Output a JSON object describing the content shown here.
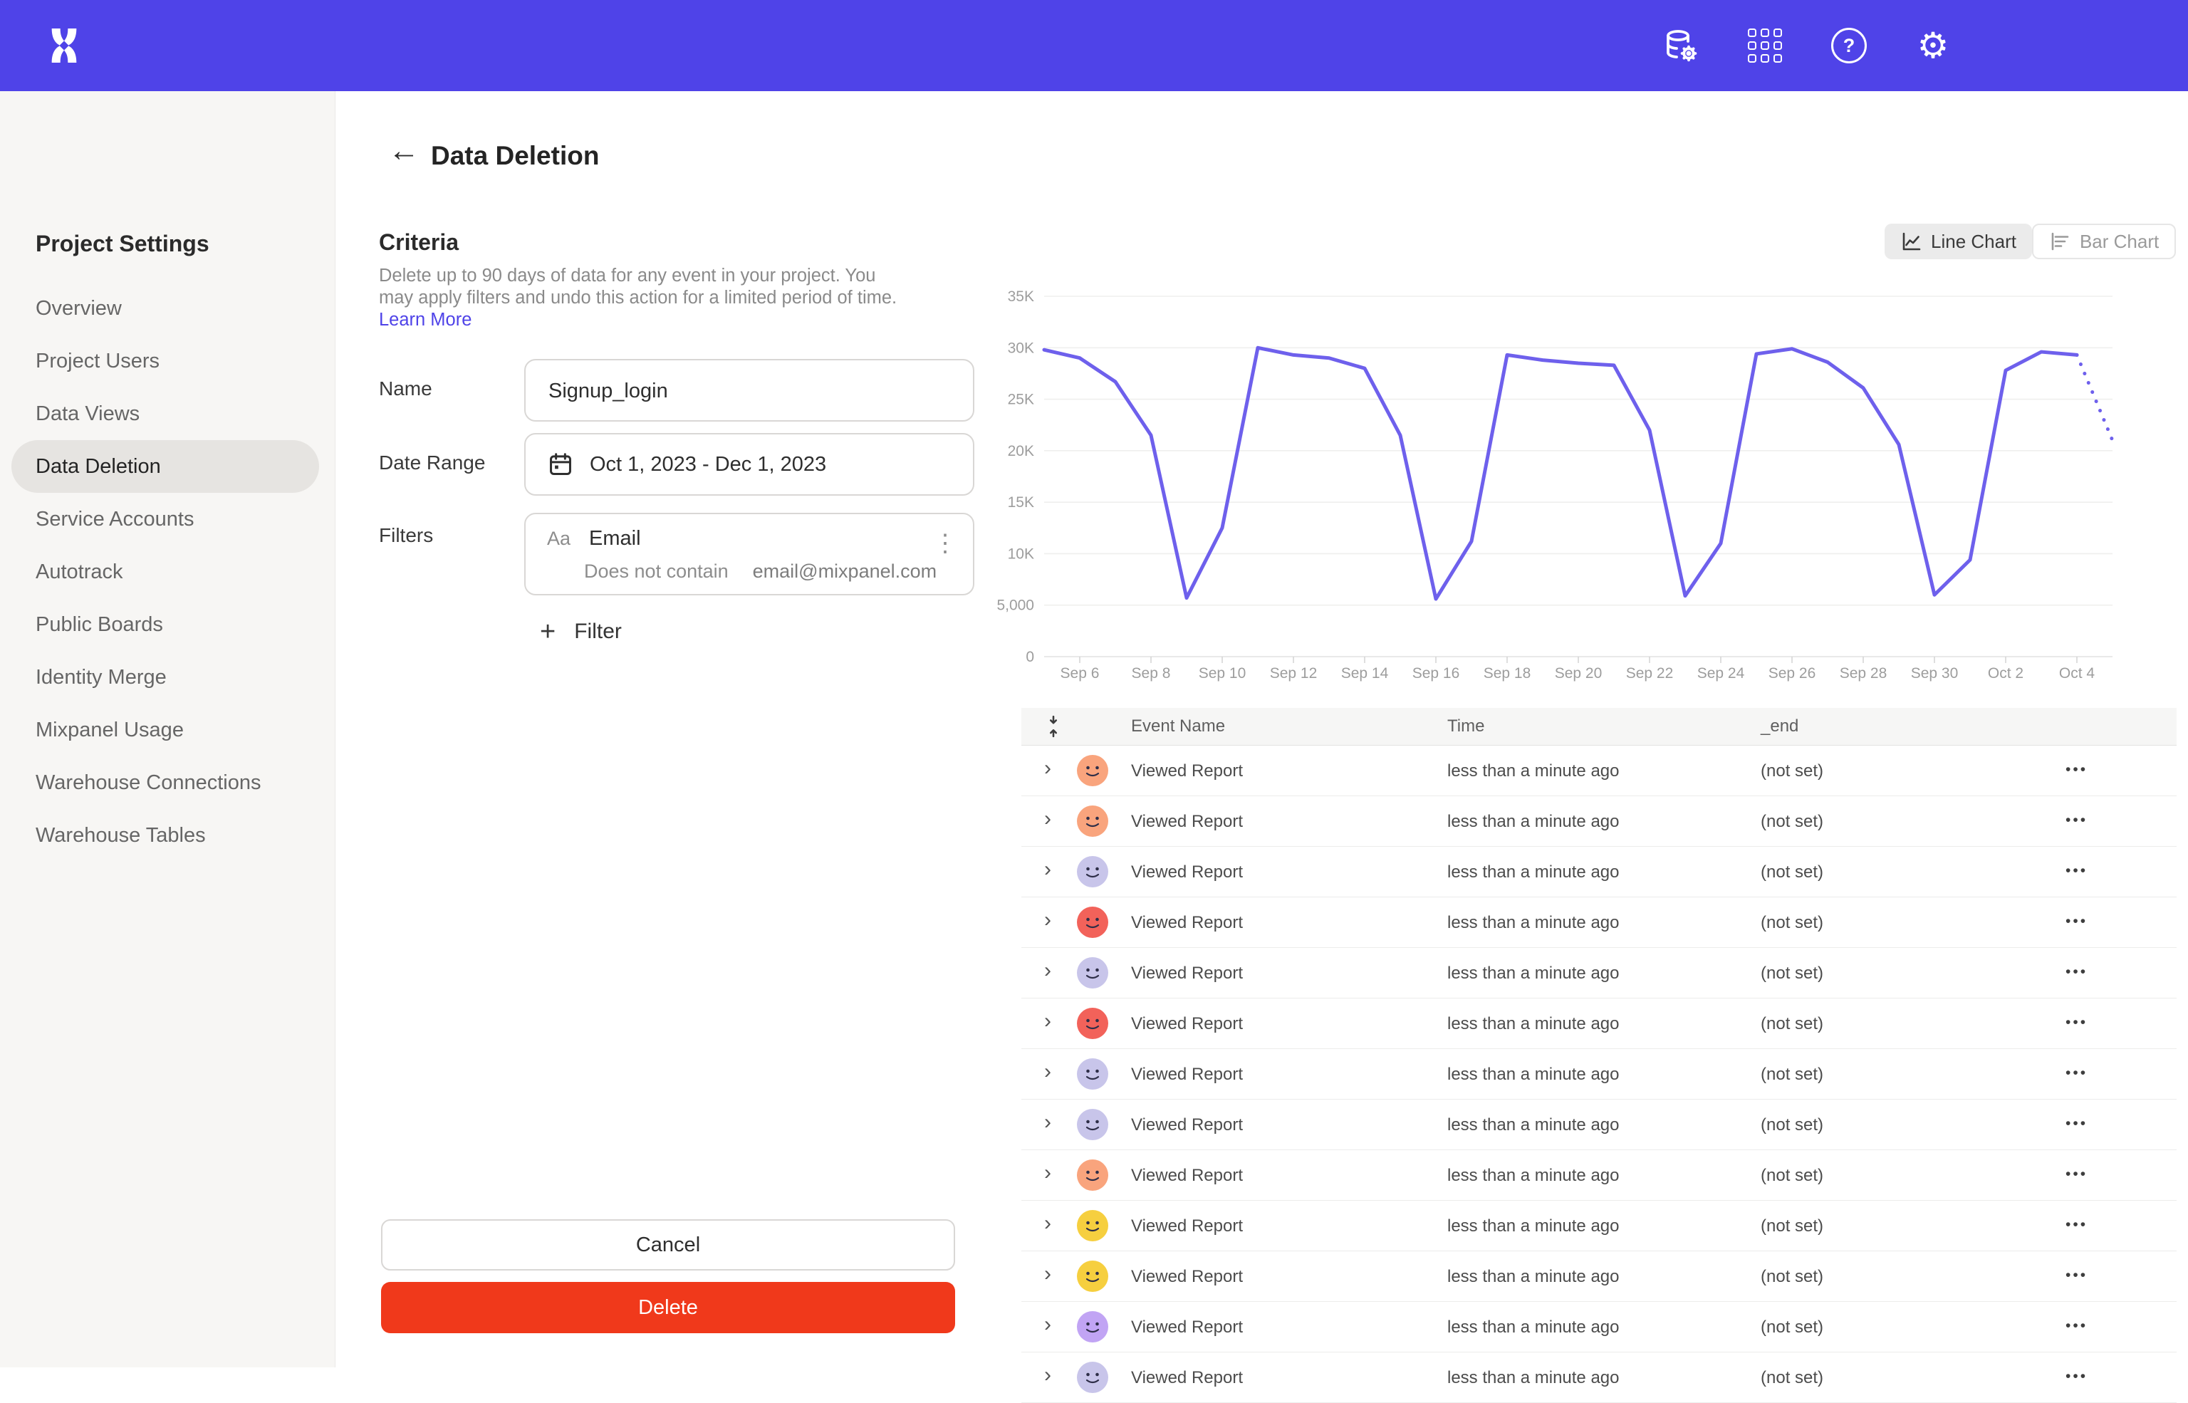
{
  "icons": {
    "back": "←",
    "plus": "+",
    "chevron": "›",
    "kebab_vertical": "⋮",
    "kebab_horizontal": "•••",
    "help": "?",
    "gear": "⚙",
    "filter_type_badge": "Aa"
  },
  "colors": {
    "topbar": "#4f43e8",
    "accent": "#4f43e8",
    "delete_red": "#f0391b",
    "chart_line": "#6e60ec"
  },
  "sidebar": {
    "title": "Project Settings",
    "items": [
      {
        "label": "Overview",
        "active": false
      },
      {
        "label": "Project Users",
        "active": false
      },
      {
        "label": "Data Views",
        "active": false
      },
      {
        "label": "Data Deletion",
        "active": true
      },
      {
        "label": "Service Accounts",
        "active": false
      },
      {
        "label": "Autotrack",
        "active": false
      },
      {
        "label": "Public Boards",
        "active": false
      },
      {
        "label": "Identity Merge",
        "active": false
      },
      {
        "label": "Mixpanel Usage",
        "active": false
      },
      {
        "label": "Warehouse Connections",
        "active": false
      },
      {
        "label": "Warehouse Tables",
        "active": false
      }
    ]
  },
  "header": {
    "title": "Data Deletion"
  },
  "criteria": {
    "heading": "Criteria",
    "description": "Delete up to 90 days of data for any event in your project. You may apply filters and undo this action for a limited period of time.",
    "learn_more": "Learn More",
    "name_label": "Name",
    "name_value": "Signup_login",
    "date_label": "Date Range",
    "date_value": "Oct 1, 2023 - Dec 1, 2023",
    "filters_label": "Filters",
    "filter_property": "Email",
    "filter_operator": "Does not contain",
    "filter_value": "email@mixpanel.com",
    "add_filter_label": "Filter",
    "cancel_label": "Cancel",
    "delete_label": "Delete"
  },
  "chart_panel": {
    "line_chart_label": "Line Chart",
    "bar_chart_label": "Bar Chart",
    "active": "line"
  },
  "chart_data": {
    "type": "line",
    "title": "",
    "xlabel": "",
    "ylabel": "",
    "grid": true,
    "legend": "none",
    "ylim": [
      0,
      35000
    ],
    "line_color": "#6e60ec",
    "last_segment_style": "dotted-projection",
    "y_ticks": [
      {
        "v": 0,
        "label": "0"
      },
      {
        "v": 5000,
        "label": "5,000"
      },
      {
        "v": 10000,
        "label": "10K"
      },
      {
        "v": 15000,
        "label": "15K"
      },
      {
        "v": 20000,
        "label": "20K"
      },
      {
        "v": 25000,
        "label": "25K"
      },
      {
        "v": 30000,
        "label": "30K"
      },
      {
        "v": 35000,
        "label": "35K"
      }
    ],
    "x": [
      "Sep 5",
      "Sep 6",
      "Sep 7",
      "Sep 8",
      "Sep 9",
      "Sep 10",
      "Sep 11",
      "Sep 12",
      "Sep 13",
      "Sep 14",
      "Sep 15",
      "Sep 16",
      "Sep 17",
      "Sep 18",
      "Sep 19",
      "Sep 20",
      "Sep 21",
      "Sep 22",
      "Sep 23",
      "Sep 24",
      "Sep 25",
      "Sep 26",
      "Sep 27",
      "Sep 28",
      "Sep 29",
      "Sep 30",
      "Oct 1",
      "Oct 2",
      "Oct 3",
      "Oct 4",
      "Oct 5"
    ],
    "values": [
      29800,
      29000,
      26700,
      21500,
      5700,
      12500,
      30000,
      29300,
      29000,
      28000,
      21500,
      5600,
      11200,
      29300,
      28800,
      28500,
      28300,
      22000,
      5900,
      11000,
      29400,
      29900,
      28600,
      26100,
      20600,
      6000,
      9400,
      27800,
      29600,
      29300,
      21000
    ]
  },
  "table": {
    "columns": [
      "Event Name",
      "Time",
      "_end"
    ],
    "rows": [
      {
        "event": "Viewed Report",
        "time": "less than a minute ago",
        "end": "(not set)",
        "avatar_color": "#f9a47d"
      },
      {
        "event": "Viewed Report",
        "time": "less than a minute ago",
        "end": "(not set)",
        "avatar_color": "#f9a47d"
      },
      {
        "event": "Viewed Report",
        "time": "less than a minute ago",
        "end": "(not set)",
        "avatar_color": "#c8c5ea"
      },
      {
        "event": "Viewed Report",
        "time": "less than a minute ago",
        "end": "(not set)",
        "avatar_color": "#f2625a"
      },
      {
        "event": "Viewed Report",
        "time": "less than a minute ago",
        "end": "(not set)",
        "avatar_color": "#c8c5ea"
      },
      {
        "event": "Viewed Report",
        "time": "less than a minute ago",
        "end": "(not set)",
        "avatar_color": "#f2625a"
      },
      {
        "event": "Viewed Report",
        "time": "less than a minute ago",
        "end": "(not set)",
        "avatar_color": "#c8c5ea"
      },
      {
        "event": "Viewed Report",
        "time": "less than a minute ago",
        "end": "(not set)",
        "avatar_color": "#c8c5ea"
      },
      {
        "event": "Viewed Report",
        "time": "less than a minute ago",
        "end": "(not set)",
        "avatar_color": "#f9a47d"
      },
      {
        "event": "Viewed Report",
        "time": "less than a minute ago",
        "end": "(not set)",
        "avatar_color": "#f6cf3f"
      },
      {
        "event": "Viewed Report",
        "time": "less than a minute ago",
        "end": "(not set)",
        "avatar_color": "#f6cf3f"
      },
      {
        "event": "Viewed Report",
        "time": "less than a minute ago",
        "end": "(not set)",
        "avatar_color": "#c1a4f4"
      },
      {
        "event": "Viewed Report",
        "time": "less than a minute ago",
        "end": "(not set)",
        "avatar_color": "#c8c5ea"
      }
    ]
  }
}
